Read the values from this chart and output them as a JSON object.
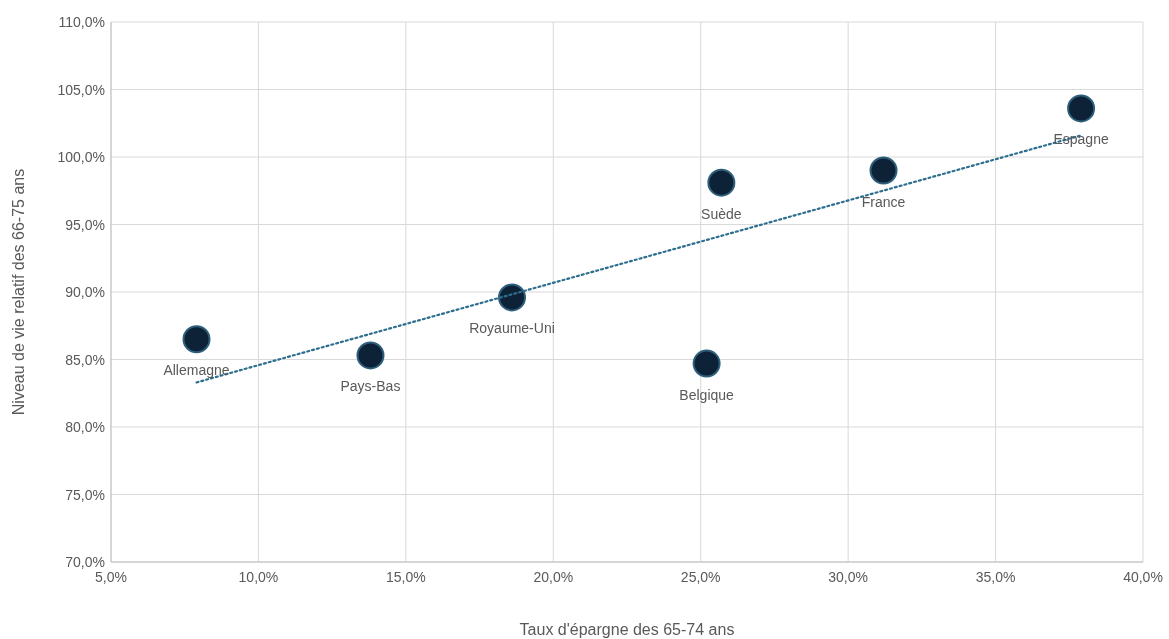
{
  "chart_data": {
    "type": "scatter",
    "xlabel": "Taux d'épargne des 65-74 ans",
    "ylabel": "Niveau de vie relatif des 66-75 ans",
    "xlim": [
      5,
      40
    ],
    "xticks": [
      {
        "value": 5,
        "label": "5,0%"
      },
      {
        "value": 10,
        "label": "10,0%"
      },
      {
        "value": 15,
        "label": "15,0%"
      },
      {
        "value": 20,
        "label": "20,0%"
      },
      {
        "value": 25,
        "label": "25,0%"
      },
      {
        "value": 30,
        "label": "30,0%"
      },
      {
        "value": 35,
        "label": "35,0%"
      },
      {
        "value": 40,
        "label": "40,0%"
      }
    ],
    "ylim": [
      70,
      110
    ],
    "yticks": [
      {
        "value": 70,
        "label": "70,0%"
      },
      {
        "value": 75,
        "label": "75,0%"
      },
      {
        "value": 80,
        "label": "80,0%"
      },
      {
        "value": 85,
        "label": "85,0%"
      },
      {
        "value": 90,
        "label": "90,0%"
      },
      {
        "value": 95,
        "label": "95,0%"
      },
      {
        "value": 100,
        "label": "100,0%"
      },
      {
        "value": 105,
        "label": "105,0%"
      },
      {
        "value": 110,
        "label": "110,0%"
      }
    ],
    "grid": true,
    "series": [
      {
        "color": "#0d2137",
        "marker": "circle",
        "x": [
          7.9,
          13.8,
          18.6,
          25.2,
          25.7,
          31.2,
          37.9
        ],
        "values": [
          86.5,
          85.3,
          89.6,
          84.7,
          98.1,
          99.0,
          103.6
        ]
      },
      {
        "type": "line",
        "color": "#2e6e8e",
        "line_style": "dotted",
        "marker": "none",
        "x": [
          7.9,
          37.9
        ],
        "values": [
          83.3,
          101.6
        ]
      }
    ],
    "annotations": [
      {
        "text": "Allemagne",
        "x": 7.9,
        "y": 86.5
      },
      {
        "text": "Pays-Bas",
        "x": 13.8,
        "y": 85.3
      },
      {
        "text": "Royaume-Uni",
        "x": 18.6,
        "y": 89.6
      },
      {
        "text": "Belgique",
        "x": 25.2,
        "y": 84.7
      },
      {
        "text": "Suède",
        "x": 25.7,
        "y": 98.1
      },
      {
        "text": "France",
        "x": 31.2,
        "y": 99.0
      },
      {
        "text": "Espagne",
        "x": 37.9,
        "y": 103.6
      }
    ]
  }
}
